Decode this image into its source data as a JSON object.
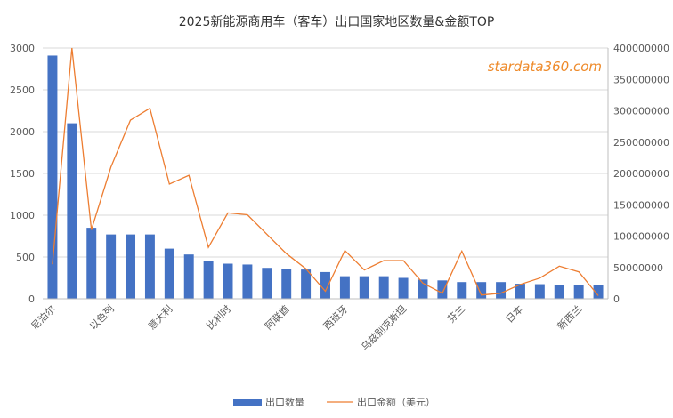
{
  "chart_data": {
    "type": "bar+line",
    "title": "2025新能源商用车（客车）出口国家地区数量&金额TOP",
    "watermark": "stardata360.com",
    "categories": [
      "尼泊尔",
      "",
      "",
      "以色列",
      "",
      "",
      "意大利",
      "",
      "",
      "比利时",
      "",
      "",
      "阿联酋",
      "",
      "",
      "西班牙",
      "",
      "",
      "乌兹别克斯坦",
      "",
      "",
      "芬兰",
      "",
      "",
      "日本",
      "",
      "",
      "新西兰",
      ""
    ],
    "bar_series": {
      "name": "出口数量",
      "color": "#4472c4",
      "values": [
        2910,
        2100,
        850,
        770,
        770,
        770,
        600,
        530,
        450,
        420,
        410,
        370,
        360,
        350,
        320,
        270,
        270,
        270,
        250,
        230,
        220,
        200,
        200,
        200,
        180,
        175,
        170,
        170,
        160
      ]
    },
    "line_series": {
      "name": "出口金额（美元）",
      "color": "#ed7d31",
      "values": [
        55000000,
        400000000,
        110000000,
        210000000,
        285000000,
        304000000,
        183000000,
        197000000,
        82000000,
        137000000,
        134000000,
        103000000,
        72000000,
        48000000,
        12000000,
        77000000,
        46000000,
        61000000,
        61000000,
        25000000,
        9000000,
        76000000,
        6000000,
        9000000,
        23000000,
        33000000,
        52000000,
        43000000,
        5000000
      ]
    },
    "left_axis": {
      "min": 0,
      "max": 3000,
      "ticks": [
        0,
        500,
        1000,
        1500,
        2000,
        2500,
        3000
      ]
    },
    "right_axis": {
      "min": 0,
      "max": 400000000,
      "ticks": [
        0,
        50000000,
        100000000,
        150000000,
        200000000,
        250000000,
        300000000,
        350000000,
        400000000
      ]
    },
    "grid": true,
    "legend_position": "bottom"
  }
}
